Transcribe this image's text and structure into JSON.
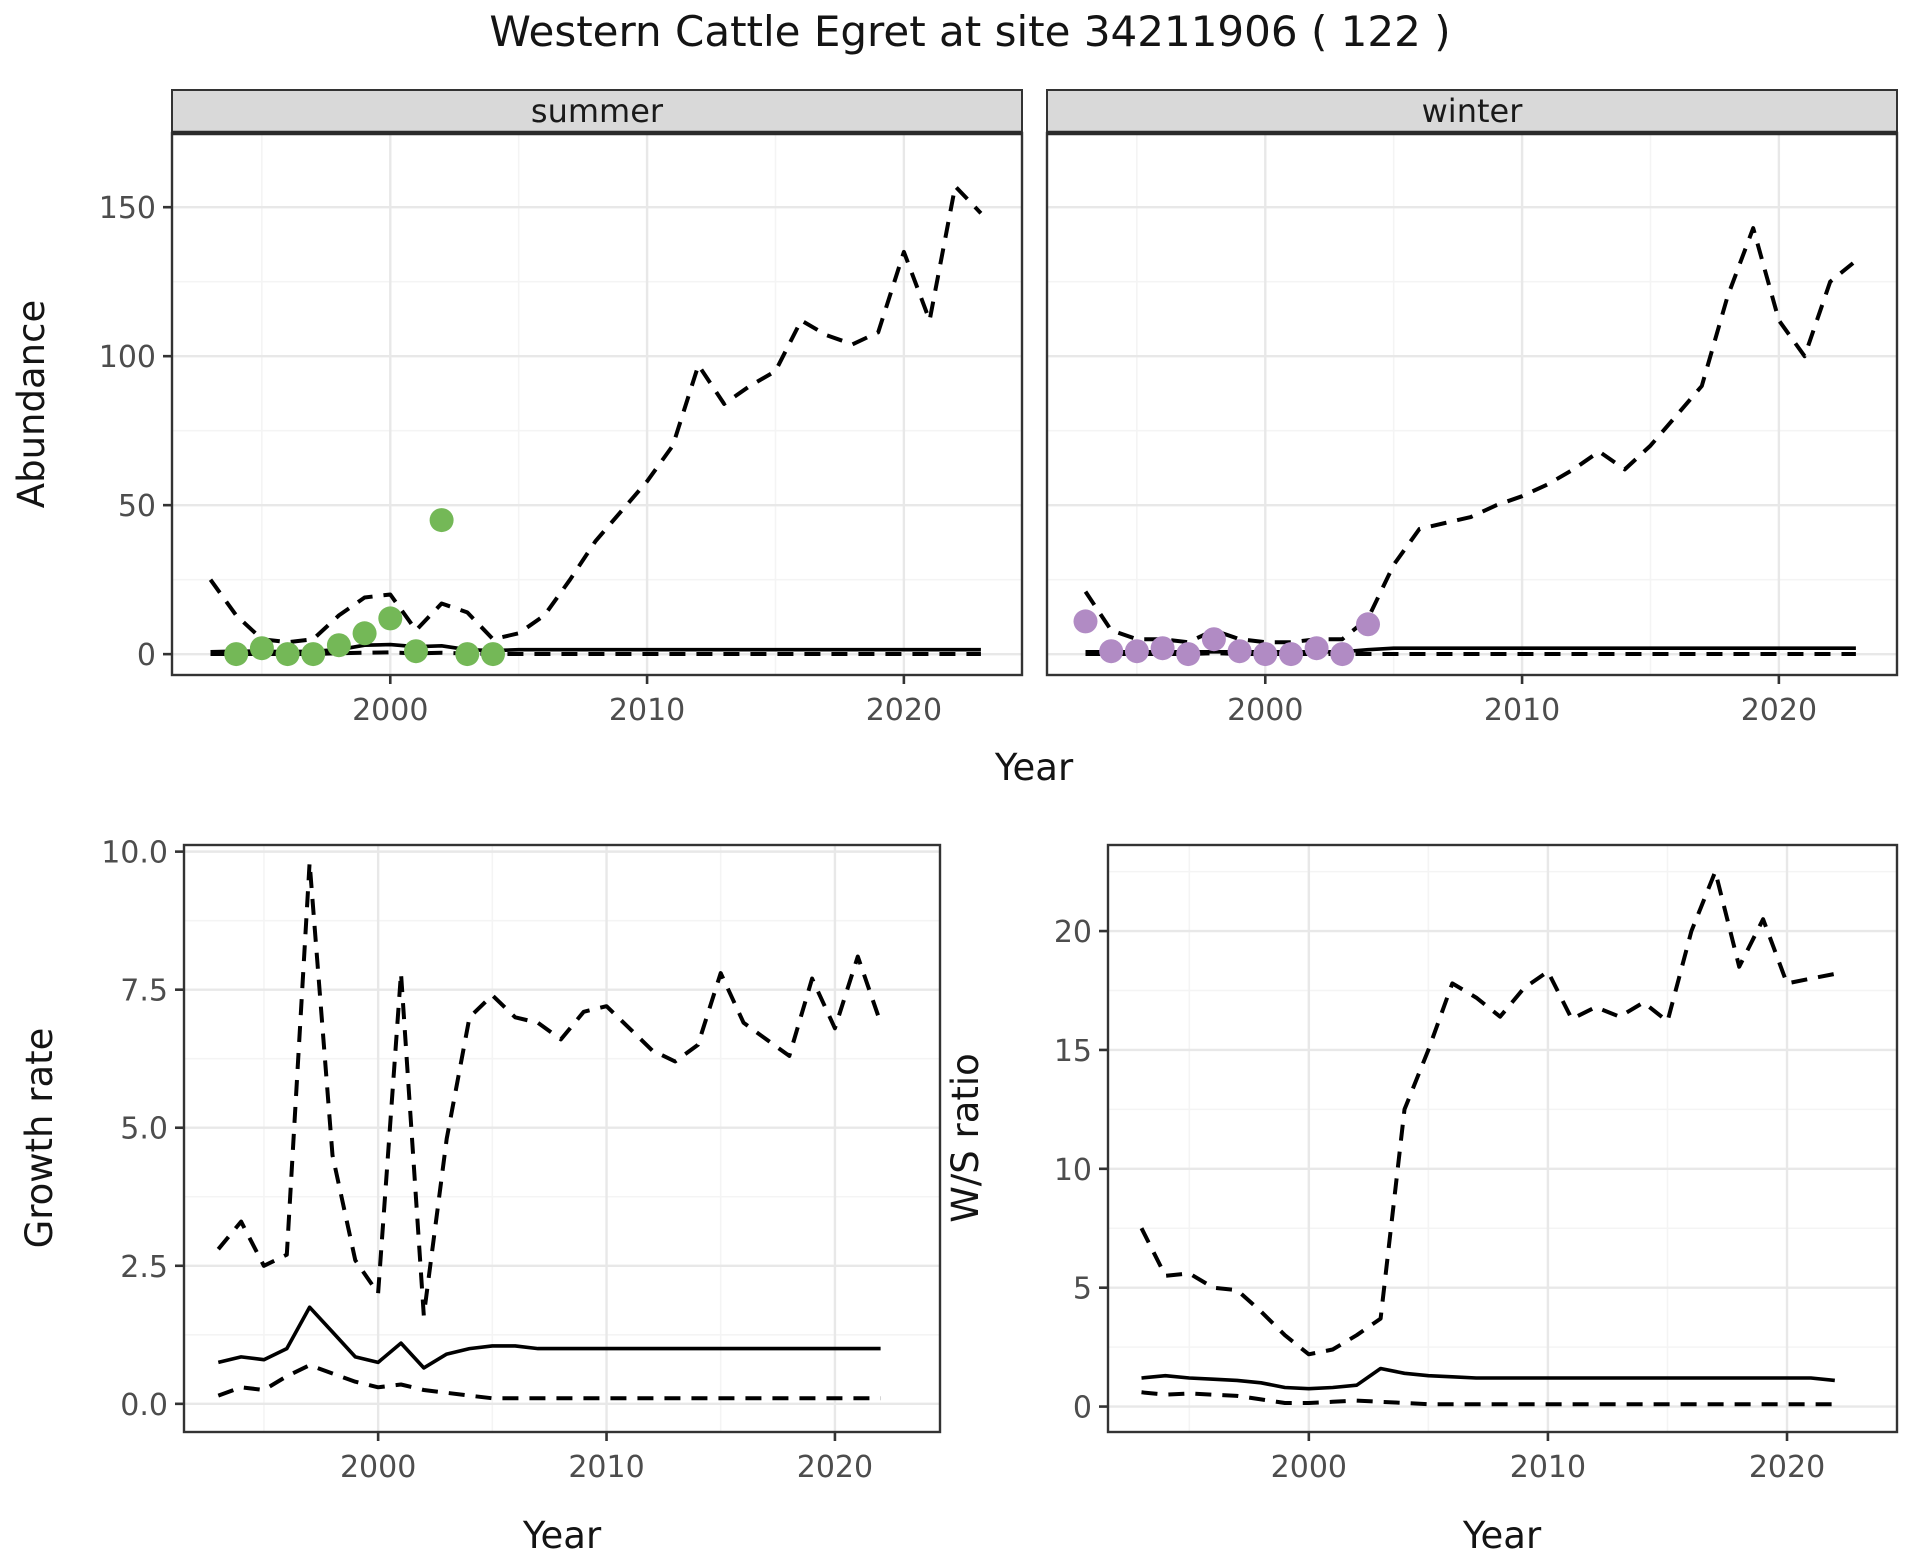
{
  "title": "Western Cattle Egret at site 34211906 ( 122 )",
  "colors": {
    "summer_points": "#74b857",
    "winter_points": "#b18bc4",
    "line": "#000000",
    "strip_bg": "#d9d9d9",
    "strip_border": "#333333",
    "panel_border": "#333333",
    "panel_bg": "#ffffff",
    "grid_major": "#e8e8e8",
    "grid_minor": "#f4f4f4",
    "tick_mark": "#333333",
    "tick_label": "#4d4d4d"
  },
  "top_axis": {
    "xlabel": "Year",
    "ylabel": "Abundance"
  },
  "chart_data": [
    {
      "type": "line",
      "panel": "summer",
      "strip_label": "summer",
      "xlabel": "Year",
      "ylabel": "Abundance",
      "xlim": [
        1991.5,
        2024.6
      ],
      "ylim": [
        -7.0,
        174.9
      ],
      "x_ticks": [
        2000,
        2010,
        2020
      ],
      "x_tick_labels": [
        "2000",
        "2010",
        "2020"
      ],
      "x_minor": [
        1995,
        2005,
        2015
      ],
      "y_ticks": [
        0,
        50,
        100,
        150
      ],
      "y_tick_labels": [
        "0",
        "50",
        "100",
        "150"
      ],
      "y_minor": [
        25,
        75,
        125
      ],
      "show_y_labels": true,
      "series": [
        {
          "name": "lower_ci",
          "style": "dashed",
          "x": [
            1993,
            1994,
            1995,
            1996,
            1997,
            1998,
            1999,
            2000,
            2001,
            2002,
            2003,
            2004,
            2005,
            2006,
            2007,
            2008,
            2009,
            2010,
            2011,
            2012,
            2013,
            2014,
            2015,
            2016,
            2017,
            2018,
            2019,
            2020,
            2021,
            2022,
            2023
          ],
          "y": [
            0.05,
            0.05,
            0.05,
            0.05,
            0.05,
            0.3,
            0.5,
            0.6,
            0.2,
            0.5,
            0.2,
            0.05,
            0.05,
            0.05,
            0.05,
            0.05,
            0.05,
            0.05,
            0.05,
            0.05,
            0.05,
            0.05,
            0.05,
            0.05,
            0.05,
            0.05,
            0.05,
            0.05,
            0.05,
            0.05,
            0.05
          ]
        },
        {
          "name": "upper_ci",
          "style": "dashed",
          "x": [
            1993,
            1994,
            1995,
            1996,
            1997,
            1998,
            1999,
            2000,
            2001,
            2002,
            2003,
            2004,
            2005,
            2006,
            2007,
            2008,
            2009,
            2010,
            2011,
            2012,
            2013,
            2014,
            2015,
            2016,
            2017,
            2018,
            2019,
            2020,
            2021,
            2022,
            2023
          ],
          "y": [
            25,
            13,
            5,
            4,
            5,
            13,
            19,
            20,
            8,
            17,
            14,
            5,
            7,
            13,
            25,
            38,
            48,
            58,
            70,
            97,
            84,
            90,
            95,
            112,
            107,
            104,
            108,
            135,
            112,
            157,
            148
          ]
        },
        {
          "name": "median",
          "style": "solid",
          "x": [
            1993,
            1994,
            1995,
            1996,
            1997,
            1998,
            1999,
            2000,
            2001,
            2002,
            2003,
            2004,
            2005,
            2006,
            2007,
            2008,
            2009,
            2010,
            2011,
            2012,
            2013,
            2014,
            2015,
            2016,
            2017,
            2018,
            2019,
            2020,
            2021,
            2022,
            2023
          ],
          "y": [
            0.8,
            1,
            1,
            0.8,
            1,
            1.5,
            3,
            3.2,
            2.5,
            2.8,
            1.5,
            1.2,
            1.5,
            1.5,
            1.5,
            1.5,
            1.5,
            1.5,
            1.5,
            1.5,
            1.5,
            1.5,
            1.5,
            1.5,
            1.5,
            1.5,
            1.5,
            1.5,
            1.5,
            1.5,
            1.5
          ]
        }
      ],
      "points": {
        "name": "observed",
        "x": [
          1994,
          1995,
          1996,
          1997,
          1998,
          1999,
          2000,
          2001,
          2002,
          2003,
          2004
        ],
        "y": [
          0,
          2,
          0,
          0,
          3,
          7,
          12,
          1,
          45,
          0,
          0
        ]
      }
    },
    {
      "type": "line",
      "panel": "winter",
      "strip_label": "winter",
      "xlabel": "Year",
      "ylabel": "Abundance",
      "xlim": [
        1991.5,
        2024.6
      ],
      "ylim": [
        -7.0,
        174.9
      ],
      "x_ticks": [
        2000,
        2010,
        2020
      ],
      "x_tick_labels": [
        "2000",
        "2010",
        "2020"
      ],
      "x_minor": [
        1995,
        2005,
        2015
      ],
      "y_ticks": [
        0,
        50,
        100,
        150
      ],
      "y_tick_labels": [
        "0",
        "50",
        "100",
        "150"
      ],
      "y_minor": [
        25,
        75,
        125
      ],
      "show_y_labels": false,
      "series": [
        {
          "name": "lower_ci",
          "style": "dashed",
          "x": [
            1993,
            1994,
            1995,
            1996,
            1997,
            1998,
            1999,
            2000,
            2001,
            2002,
            2003,
            2004,
            2005,
            2006,
            2007,
            2008,
            2009,
            2010,
            2011,
            2012,
            2013,
            2014,
            2015,
            2016,
            2017,
            2018,
            2019,
            2020,
            2021,
            2022,
            2023
          ],
          "y": [
            0.05,
            0.05,
            0.05,
            0.05,
            0.05,
            0.3,
            0.05,
            0.05,
            0.05,
            0.05,
            0.05,
            0.05,
            0.05,
            0.05,
            0.05,
            0.05,
            0.05,
            0.05,
            0.05,
            0.05,
            0.05,
            0.05,
            0.05,
            0.05,
            0.05,
            0.05,
            0.05,
            0.05,
            0.05,
            0.05,
            0.05
          ]
        },
        {
          "name": "upper_ci",
          "style": "dashed",
          "x": [
            1993,
            1994,
            1995,
            1996,
            1997,
            1998,
            1999,
            2000,
            2001,
            2002,
            2003,
            2004,
            2005,
            2006,
            2007,
            2008,
            2009,
            2010,
            2011,
            2012,
            2013,
            2014,
            2015,
            2016,
            2017,
            2018,
            2019,
            2020,
            2021,
            2022,
            2023
          ],
          "y": [
            21,
            8,
            5,
            5,
            4,
            8,
            5,
            4,
            4,
            5,
            5,
            12,
            30,
            42,
            44,
            46,
            50,
            53,
            57,
            62,
            68,
            62,
            70,
            80,
            90,
            120,
            143,
            112,
            100,
            125,
            132
          ]
        },
        {
          "name": "median",
          "style": "solid",
          "x": [
            1993,
            1994,
            1995,
            1996,
            1997,
            1998,
            1999,
            2000,
            2001,
            2002,
            2003,
            2004,
            2005,
            2006,
            2007,
            2008,
            2009,
            2010,
            2011,
            2012,
            2013,
            2014,
            2015,
            2016,
            2017,
            2018,
            2019,
            2020,
            2021,
            2022,
            2023
          ],
          "y": [
            0.8,
            0.8,
            0.8,
            0.8,
            0.8,
            0.8,
            0.8,
            0.8,
            0.8,
            0.8,
            0.8,
            1.5,
            2,
            2,
            2,
            2,
            2,
            2,
            2,
            2,
            2,
            2,
            2,
            2,
            2,
            2,
            2,
            2,
            2,
            2,
            2
          ]
        }
      ],
      "points": {
        "name": "observed",
        "x": [
          1993,
          1994,
          1995,
          1996,
          1997,
          1998,
          1999,
          2000,
          2001,
          2002,
          2003,
          2004
        ],
        "y": [
          11,
          1,
          1,
          2,
          0,
          5,
          1,
          0,
          0,
          2,
          0,
          10
        ]
      }
    },
    {
      "type": "line",
      "panel": "growth",
      "strip_label": "",
      "xlabel": "Year",
      "ylabel": "Growth rate",
      "xlim": [
        1991.5,
        2024.6
      ],
      "ylim": [
        -0.51,
        10.12
      ],
      "x_ticks": [
        2000,
        2010,
        2020
      ],
      "x_tick_labels": [
        "2000",
        "2010",
        "2020"
      ],
      "x_minor": [
        1995,
        2005,
        2015
      ],
      "y_ticks": [
        0,
        2.5,
        5.0,
        7.5,
        10.0
      ],
      "y_tick_labels": [
        "0.0",
        "2.5",
        "5.0",
        "7.5",
        "10.0"
      ],
      "y_minor": [
        1.25,
        3.75,
        6.25,
        8.75
      ],
      "show_y_labels": true,
      "series": [
        {
          "name": "lower_ci",
          "style": "dashed",
          "x": [
            1993,
            1994,
            1995,
            1996,
            1997,
            1998,
            1999,
            2000,
            2001,
            2002,
            2003,
            2004,
            2005,
            2006,
            2007,
            2008,
            2009,
            2010,
            2011,
            2012,
            2013,
            2014,
            2015,
            2016,
            2017,
            2018,
            2019,
            2020,
            2021,
            2022
          ],
          "y": [
            0.15,
            0.3,
            0.25,
            0.5,
            0.7,
            0.55,
            0.4,
            0.3,
            0.35,
            0.25,
            0.2,
            0.15,
            0.1,
            0.1,
            0.1,
            0.1,
            0.1,
            0.1,
            0.1,
            0.1,
            0.1,
            0.1,
            0.1,
            0.1,
            0.1,
            0.1,
            0.1,
            0.1,
            0.1,
            0.1
          ]
        },
        {
          "name": "upper_ci",
          "style": "dashed",
          "x": [
            1993,
            1994,
            1995,
            1996,
            1997,
            1998,
            1999,
            2000,
            2001,
            2002,
            2003,
            2004,
            2005,
            2006,
            2007,
            2008,
            2009,
            2010,
            2011,
            2012,
            2013,
            2014,
            2015,
            2016,
            2017,
            2018,
            2019,
            2020,
            2021,
            2022
          ],
          "y": [
            2.8,
            3.3,
            2.5,
            2.7,
            9.8,
            4.5,
            2.6,
            2.0,
            7.8,
            1.6,
            4.8,
            7.0,
            7.4,
            7.0,
            6.9,
            6.6,
            7.1,
            7.2,
            6.8,
            6.4,
            6.2,
            6.5,
            7.8,
            6.9,
            6.6,
            6.3,
            7.7,
            6.8,
            8.1,
            6.9
          ]
        },
        {
          "name": "median",
          "style": "solid",
          "x": [
            1993,
            1994,
            1995,
            1996,
            1997,
            1998,
            1999,
            2000,
            2001,
            2002,
            2003,
            2004,
            2005,
            2006,
            2007,
            2008,
            2009,
            2010,
            2011,
            2012,
            2013,
            2014,
            2015,
            2016,
            2017,
            2018,
            2019,
            2020,
            2021,
            2022
          ],
          "y": [
            0.75,
            0.85,
            0.8,
            1.0,
            1.75,
            1.3,
            0.85,
            0.75,
            1.1,
            0.65,
            0.9,
            1.0,
            1.05,
            1.05,
            1.0,
            1.0,
            1.0,
            1.0,
            1.0,
            1.0,
            1.0,
            1.0,
            1.0,
            1.0,
            1.0,
            1.0,
            1.0,
            1.0,
            1.0,
            1.0
          ]
        }
      ],
      "points": null
    },
    {
      "type": "line",
      "panel": "ws",
      "strip_label": "",
      "xlabel": "Year",
      "ylabel": "W/S ratio",
      "xlim": [
        1991.6,
        2024.6
      ],
      "ylim": [
        -1.07,
        23.62
      ],
      "x_ticks": [
        2000,
        2010,
        2020
      ],
      "x_tick_labels": [
        "2000",
        "2010",
        "2020"
      ],
      "x_minor": [
        1995,
        2005,
        2015
      ],
      "y_ticks": [
        0,
        5,
        10,
        15,
        20
      ],
      "y_tick_labels": [
        "0",
        "5",
        "10",
        "15",
        "20"
      ],
      "y_minor": [
        2.5,
        7.5,
        12.5,
        17.5,
        22.5
      ],
      "show_y_labels": true,
      "series": [
        {
          "name": "lower_ci",
          "style": "dashed",
          "x": [
            1993,
            1994,
            1995,
            1996,
            1997,
            1998,
            1999,
            2000,
            2001,
            2002,
            2003,
            2004,
            2005,
            2006,
            2007,
            2008,
            2009,
            2010,
            2011,
            2012,
            2013,
            2014,
            2015,
            2016,
            2017,
            2018,
            2019,
            2020,
            2021,
            2022
          ],
          "y": [
            0.6,
            0.5,
            0.55,
            0.5,
            0.45,
            0.3,
            0.15,
            0.15,
            0.2,
            0.25,
            0.2,
            0.15,
            0.1,
            0.1,
            0.1,
            0.1,
            0.1,
            0.1,
            0.1,
            0.1,
            0.1,
            0.1,
            0.1,
            0.1,
            0.1,
            0.1,
            0.1,
            0.1,
            0.1,
            0.1
          ]
        },
        {
          "name": "upper_ci",
          "style": "dashed",
          "x": [
            1993,
            1994,
            1995,
            1996,
            1997,
            1998,
            1999,
            2000,
            2001,
            2002,
            2003,
            2004,
            2005,
            2006,
            2007,
            2008,
            2009,
            2010,
            2011,
            2012,
            2013,
            2014,
            2015,
            2016,
            2017,
            2018,
            2019,
            2020,
            2021,
            2022
          ],
          "y": [
            7.5,
            5.5,
            5.6,
            5.0,
            4.9,
            4.0,
            3.0,
            2.2,
            2.4,
            3.0,
            3.7,
            12.5,
            15.0,
            17.8,
            17.2,
            16.4,
            17.6,
            18.3,
            16.3,
            16.8,
            16.4,
            17.0,
            16.2,
            20.0,
            22.5,
            18.5,
            20.5,
            17.8,
            18.0,
            18.2
          ]
        },
        {
          "name": "median",
          "style": "solid",
          "x": [
            1993,
            1994,
            1995,
            1996,
            1997,
            1998,
            1999,
            2000,
            2001,
            2002,
            2003,
            2004,
            2005,
            2006,
            2007,
            2008,
            2009,
            2010,
            2011,
            2012,
            2013,
            2014,
            2015,
            2016,
            2017,
            2018,
            2019,
            2020,
            2021,
            2022
          ],
          "y": [
            1.2,
            1.3,
            1.2,
            1.15,
            1.1,
            1.0,
            0.8,
            0.75,
            0.8,
            0.9,
            1.6,
            1.4,
            1.3,
            1.25,
            1.2,
            1.2,
            1.2,
            1.2,
            1.2,
            1.2,
            1.2,
            1.2,
            1.2,
            1.2,
            1.2,
            1.2,
            1.2,
            1.2,
            1.2,
            1.1
          ]
        }
      ],
      "points": null
    }
  ]
}
